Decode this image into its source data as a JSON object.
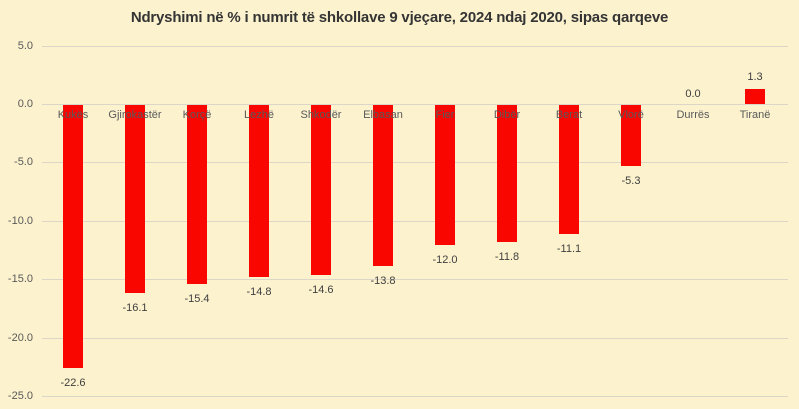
{
  "colors": {
    "background": "#FCF2CE",
    "bar": "#F90600",
    "gridline": "#DCD6C8",
    "title_text": "#343434",
    "axis_text": "#595959",
    "data_label_text": "#3F3F3F"
  },
  "chart_data": {
    "type": "bar",
    "title": "Ndryshimi në % i numrit të shkollave 9 vjeçare, 2024 ndaj 2020, sipas qarqeve",
    "categories": [
      "Kukës",
      "Gjirokastër",
      "Korçë",
      "Lezhë",
      "Shkodër",
      "Elbasan",
      "Fier",
      "Dibër",
      "Berat",
      "Vlorë",
      "Durrës",
      "Tiranë"
    ],
    "values": [
      -22.6,
      -16.1,
      -15.4,
      -14.8,
      -14.6,
      -13.8,
      -12.0,
      -11.8,
      -11.1,
      -5.3,
      0.0,
      1.3
    ],
    "data_labels": [
      "-22.6",
      "-16.1",
      "-15.4",
      "-14.8",
      "-14.6",
      "-13.8",
      "-12.0",
      "-11.8",
      "-11.1",
      "-5.3",
      "0.0",
      "1.3"
    ],
    "xlabel": "",
    "ylabel": "",
    "y_ticks": [
      5.0,
      0.0,
      -5.0,
      -10.0,
      -15.0,
      -20.0,
      -25.0
    ],
    "y_tick_labels": [
      "5.0",
      "0.0",
      "-5.0",
      "-10.0",
      "-15.0",
      "-20.0",
      "-25.0"
    ],
    "ylim": [
      -25,
      5
    ],
    "grid": true,
    "legend": false
  }
}
